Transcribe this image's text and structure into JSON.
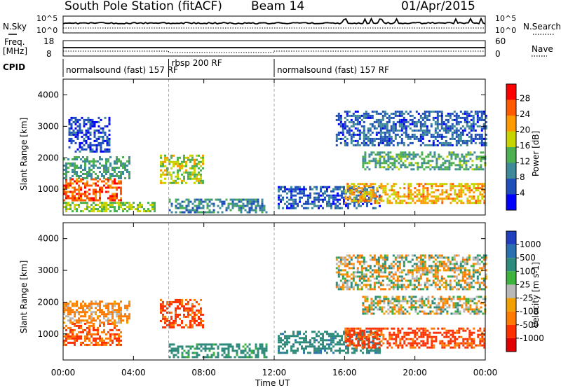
{
  "header": {
    "station": "South Pole Station (fitACF)",
    "beam": "Beam 14",
    "date": "01/Apr/2015"
  },
  "param_panels": {
    "nsky_label": "N.Sky",
    "nsearch_label": "N.Search",
    "noise_left_ticks": [
      "10^5",
      "10^0"
    ],
    "noise_right_ticks": [
      "10^5",
      "10^0"
    ],
    "freq_label": "Freq.",
    "freq_unit": "[MHz]",
    "freq_ticks": [
      "18",
      "8"
    ],
    "nave_label": "Nave",
    "nave_ticks": [
      "60",
      "0"
    ],
    "cpid_label": "CPID",
    "cpid_segments": [
      {
        "label": "normalsound (fast) 157 RF",
        "start_hour": 0,
        "end_hour": 6
      },
      {
        "label": "rbsp 200 RF",
        "start_hour": 6,
        "end_hour": 12
      },
      {
        "label": "normalsound (fast) 157 RF",
        "start_hour": 12,
        "end_hour": 24
      }
    ]
  },
  "colors": {
    "power_scale": [
      "#0000ff",
      "#1f4fb8",
      "#3f8a9a",
      "#4caf50",
      "#c8d400",
      "#ff9900",
      "#ff5a00",
      "#ff0000"
    ],
    "velocity_scale": [
      "#1f3fbf",
      "#2a6fb0",
      "#2e8a7a",
      "#3db33d",
      "#b8b8b8",
      "#f0a000",
      "#ff7a00",
      "#ff3000",
      "#e00000"
    ],
    "ground": "#b8b8b8"
  },
  "chart_data": [
    {
      "type": "heatmap",
      "name": "power",
      "ylabel": "Slant Range [km]",
      "ylim": [
        180,
        4500
      ],
      "yticks": [
        "1000",
        "2000",
        "3000",
        "4000"
      ],
      "xlim_hours": [
        0,
        24
      ],
      "colorbar": {
        "label": "Power [dB]",
        "range": [
          0,
          32
        ],
        "ticks": [
          "28",
          "24",
          "20",
          "16",
          "12",
          "8",
          "4"
        ]
      },
      "echo_regions": [
        {
          "t0": 0.0,
          "t1": 3.3,
          "r0": 650,
          "r1": 1350,
          "level": 26
        },
        {
          "t0": 0.0,
          "t1": 3.8,
          "r0": 1350,
          "r1": 2050,
          "level": 12
        },
        {
          "t0": 0.3,
          "t1": 2.6,
          "r0": 2200,
          "r1": 3300,
          "level": 5
        },
        {
          "t0": 0.0,
          "t1": 5.2,
          "r0": 300,
          "r1": 600,
          "level": 16
        },
        {
          "t0": 5.5,
          "t1": 8.0,
          "r0": 1200,
          "r1": 2100,
          "level": 17
        },
        {
          "t0": 6.0,
          "t1": 11.6,
          "r0": 250,
          "r1": 700,
          "level": 10
        },
        {
          "t0": 12.2,
          "t1": 18.0,
          "r0": 400,
          "r1": 1100,
          "level": 7
        },
        {
          "t0": 16.0,
          "t1": 24.0,
          "r0": 550,
          "r1": 1200,
          "level": 21
        },
        {
          "t0": 17.0,
          "t1": 24.0,
          "r0": 1650,
          "r1": 2200,
          "level": 13
        },
        {
          "t0": 15.5,
          "t1": 24.0,
          "r0": 2400,
          "r1": 3500,
          "level": 7
        }
      ]
    },
    {
      "type": "heatmap",
      "name": "velocity",
      "ylabel": "Slant Range [km]",
      "xlabel": "Time UT",
      "ylim": [
        180,
        4500
      ],
      "yticks": [
        "1000",
        "2000",
        "3000",
        "4000"
      ],
      "xlim_hours": [
        0,
        24
      ],
      "xticks": [
        "00:00",
        "04:00",
        "08:00",
        "12:00",
        "16:00",
        "20:00",
        "00:00"
      ],
      "colorbar": {
        "label": "Velocity [m s-1]",
        "ticks": [
          "1000",
          "500",
          "100",
          "25",
          "-25",
          "-100",
          "-500",
          "-1000"
        ]
      },
      "echo_regions": [
        {
          "t0": 0.0,
          "t1": 3.3,
          "r0": 650,
          "r1": 1350,
          "velocity": -300
        },
        {
          "t0": 0.0,
          "t1": 3.8,
          "r0": 1350,
          "r1": 2050,
          "velocity": -100
        },
        {
          "t0": 5.5,
          "t1": 8.0,
          "r0": 1200,
          "r1": 2100,
          "velocity": -350
        },
        {
          "t0": 6.0,
          "t1": 11.6,
          "r0": 250,
          "r1": 700,
          "velocity": 150
        },
        {
          "t0": 12.2,
          "t1": 18.0,
          "r0": 400,
          "r1": 1100,
          "velocity": 200
        },
        {
          "t0": 16.0,
          "t1": 24.0,
          "r0": 550,
          "r1": 1200,
          "velocity": -350
        },
        {
          "t0": 17.0,
          "t1": 24.0,
          "r0": 1650,
          "r1": 2200,
          "velocity": 0
        },
        {
          "t0": 15.5,
          "t1": 24.0,
          "r0": 2400,
          "r1": 3500,
          "velocity": 0
        }
      ]
    }
  ]
}
